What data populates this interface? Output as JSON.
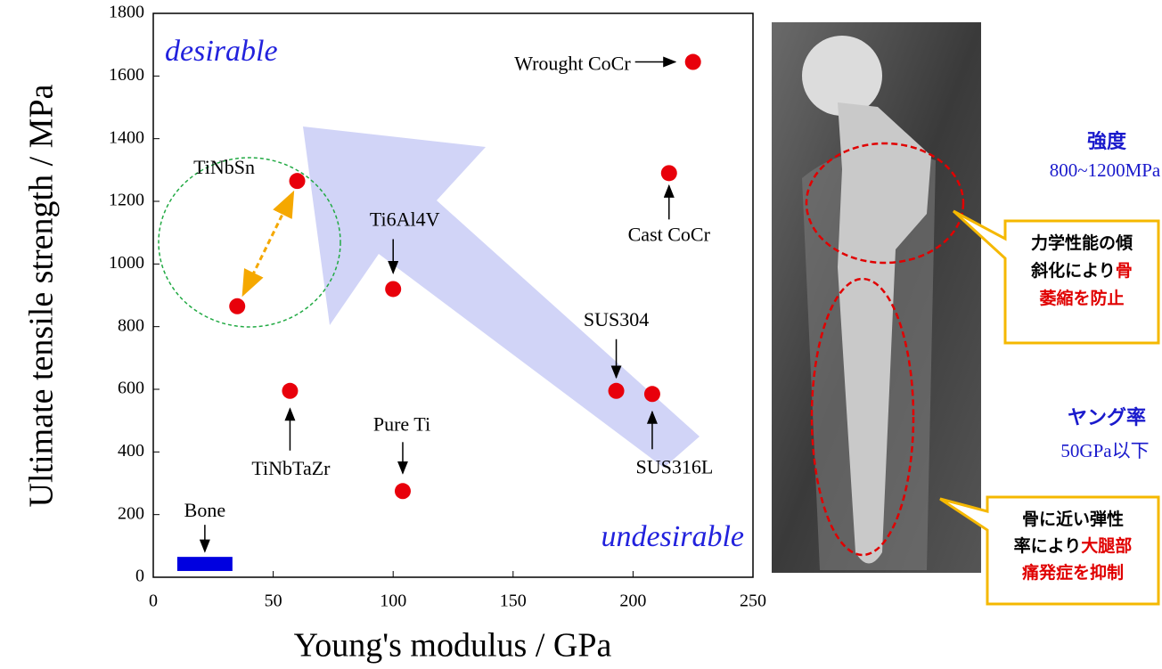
{
  "chart_data": {
    "type": "scatter",
    "x_label": "Young's modulus / GPa",
    "y_label": "Ultimate tensile strength / MPa",
    "xlim": [
      0,
      250
    ],
    "xticks": [
      0,
      50,
      100,
      150,
      200,
      250
    ],
    "ylim": [
      0,
      1800
    ],
    "yticks": [
      0,
      200,
      400,
      600,
      800,
      1000,
      1200,
      1400,
      1600,
      1800
    ],
    "color": "#e8000b",
    "points": [
      {
        "label": "Wrought CoCr",
        "x": 225,
        "y": 1645
      },
      {
        "label": "Cast CoCr",
        "x": 215,
        "y": 1290
      },
      {
        "label": "TiNbSn",
        "x": 60,
        "y": 1265
      },
      {
        "label": null,
        "x": 35,
        "y": 865
      },
      {
        "label": "Ti6Al4V",
        "x": 100,
        "y": 920
      },
      {
        "label": "TiNbTaZr",
        "x": 57,
        "y": 595
      },
      {
        "label": "Pure Ti",
        "x": 104,
        "y": 275
      },
      {
        "label": "SUS304",
        "x": 193,
        "y": 595
      },
      {
        "label": "SUS316L",
        "x": 208,
        "y": 585
      }
    ],
    "bone": {
      "label": "Bone",
      "xrange": [
        10,
        33
      ],
      "yrange": [
        20,
        65
      ],
      "color": "#0000e0"
    },
    "annotations": {
      "desirable": "desirable",
      "undesirable": "undesirable"
    }
  },
  "image_notes": {
    "strength_title": "強度",
    "strength_value": "800~1200MPa",
    "modulus_title": "ヤング率",
    "modulus_value": "50GPa以下",
    "callouts": [
      {
        "lines": [
          [
            {
              "text": "力学性能の傾",
              "color": "#000"
            }
          ],
          [
            {
              "text": "斜化により",
              "color": "#000"
            },
            {
              "text": "骨",
              "color": "#e00000"
            }
          ],
          [
            {
              "text": "萎縮を防止",
              "color": "#e00000"
            }
          ]
        ]
      },
      {
        "lines": [
          [
            {
              "text": "骨に近い弾性",
              "color": "#000"
            }
          ],
          [
            {
              "text": "率により",
              "color": "#000"
            },
            {
              "text": "大腿部",
              "color": "#e00000"
            }
          ],
          [
            {
              "text": "痛発症を抑制",
              "color": "#e00000"
            }
          ]
        ]
      }
    ]
  }
}
